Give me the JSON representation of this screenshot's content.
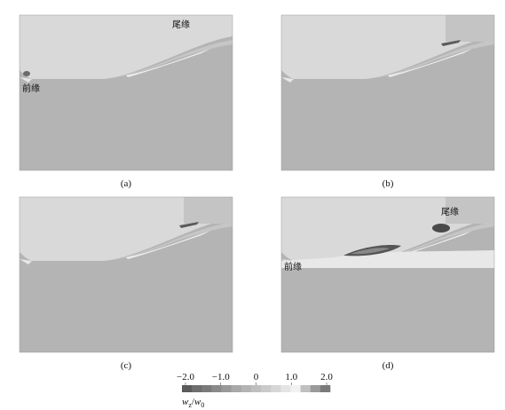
{
  "panels": [
    {
      "label": "(a)",
      "annotations": [
        "尾缘",
        "前缘"
      ]
    },
    {
      "label": "(b)"
    },
    {
      "label": "(c)"
    },
    {
      "label": "(d)",
      "annotations": [
        "尾缘",
        "前缘"
      ]
    }
  ],
  "colorbar": {
    "range": [
      -2.1,
      2.1
    ],
    "ticks": [
      {
        "value": -2,
        "label": "−2.0"
      },
      {
        "value": -1,
        "label": "−1.0"
      },
      0,
      {
        "value": 1,
        "label": "1.0"
      },
      {
        "value": 2,
        "label": "2.0"
      }
    ],
    "label": {
      "numerator": "w",
      "numerator_sub": "z",
      "separator": "/",
      "denominator": "w",
      "denominator_sub": "0"
    }
  }
}
